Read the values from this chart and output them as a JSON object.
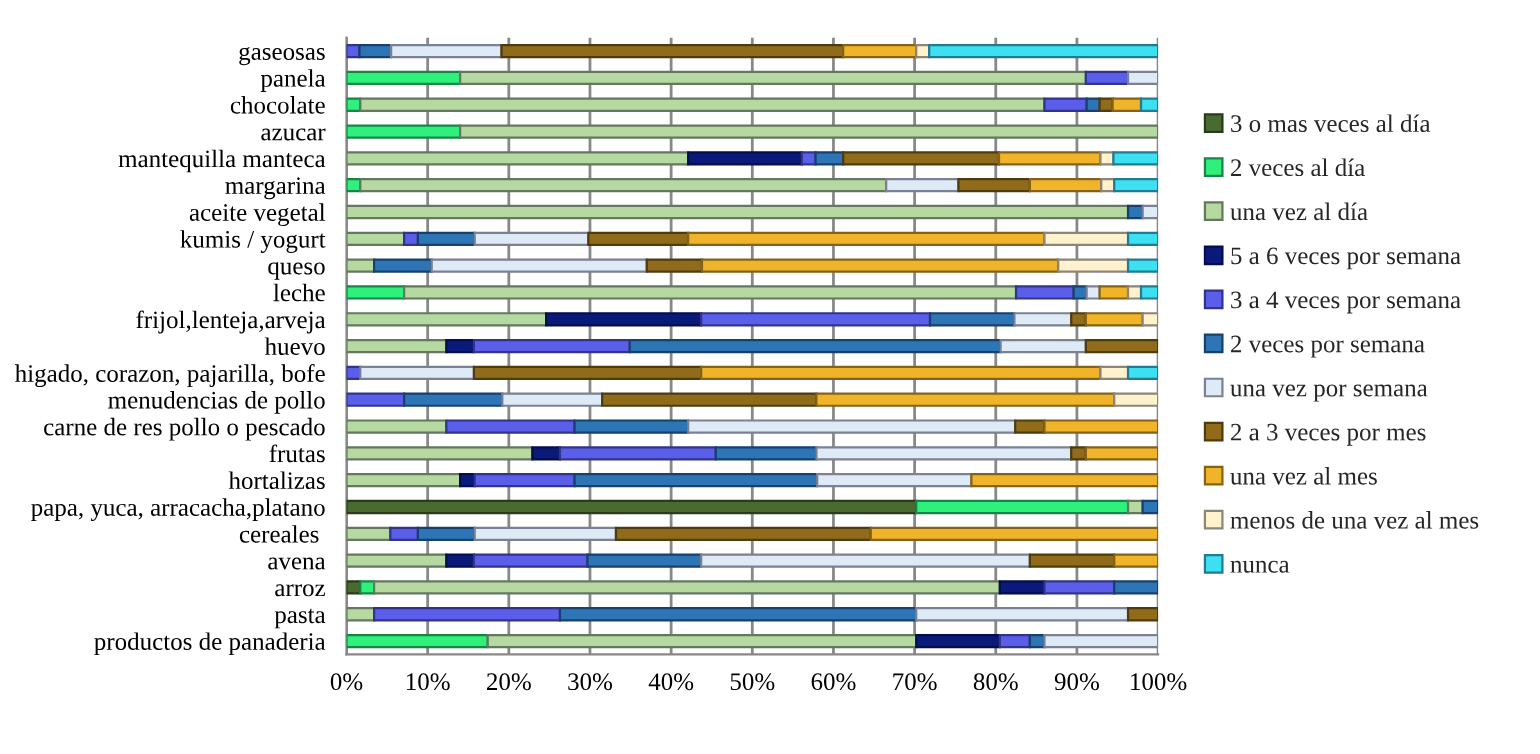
{
  "chart_data": {
    "type": "bar",
    "orientation": "horizontal",
    "stacked": true,
    "categories": [
      "gaseosas",
      "panela",
      "chocolate",
      "azucar",
      "mantequilla manteca",
      "margarina",
      "aceite vegetal",
      "kumis / yogurt",
      "queso",
      "leche",
      "frijol,lenteja,arveja",
      "huevo",
      "higado, corazon, pajarilla, bofe",
      "menudencias de pollo",
      "carne de res pollo o pescado",
      "frutas",
      "hortalizas",
      "papa, yuca, arracacha,platano",
      "cereales ",
      "avena",
      "arroz",
      "pasta",
      "productos de panaderia"
    ],
    "series": [
      {
        "name": "3 o mas veces al día",
        "color": "#4a6b30",
        "values": [
          null,
          null,
          null,
          null,
          null,
          null,
          null,
          null,
          null,
          null,
          null,
          null,
          null,
          null,
          null,
          null,
          null,
          70.2,
          null,
          null,
          1.7,
          null,
          null
        ]
      },
      {
        "name": "2 veces al día",
        "color": "#2ef07a",
        "values": [
          null,
          14.0,
          1.7,
          14.0,
          null,
          1.7,
          null,
          null,
          null,
          7.1,
          null,
          null,
          null,
          null,
          null,
          null,
          null,
          26.1,
          null,
          null,
          1.7,
          null,
          17.4
        ]
      },
      {
        "name": "una vez al día",
        "color": "#b5d9a0",
        "values": [
          null,
          77.1,
          84.3,
          86.0,
          42.1,
          64.8,
          96.3,
          7.1,
          3.4,
          75.4,
          24.6,
          12.3,
          null,
          null,
          12.3,
          22.9,
          14.0,
          1.8,
          5.4,
          12.3,
          77.1,
          3.4,
          52.8
        ]
      },
      {
        "name": "5 a 6 veces por semana",
        "color": "#0a1a7a",
        "values": [
          null,
          null,
          null,
          null,
          14.0,
          null,
          null,
          null,
          null,
          null,
          19.1,
          3.4,
          null,
          null,
          null,
          3.4,
          1.8,
          null,
          null,
          3.4,
          5.5,
          null,
          10.3
        ]
      },
      {
        "name": "3 a 4 veces por semana",
        "color": "#5a5ee8",
        "values": [
          1.6,
          5.2,
          5.2,
          null,
          1.7,
          null,
          null,
          1.7,
          null,
          7.1,
          28.2,
          19.2,
          1.7,
          7.1,
          15.8,
          19.2,
          12.3,
          null,
          3.4,
          14.0,
          8.6,
          22.9,
          3.7
        ]
      },
      {
        "name": "2 veces por semana",
        "color": "#2e75b6",
        "values": [
          3.9,
          null,
          1.6,
          null,
          3.4,
          null,
          1.8,
          7.0,
          7.1,
          1.6,
          10.4,
          45.7,
          null,
          12.1,
          14.0,
          12.4,
          29.9,
          1.9,
          7.0,
          14.0,
          5.4,
          43.9,
          1.8
        ]
      },
      {
        "name": "una vez por semana",
        "color": "#deebf7",
        "values": [
          13.6,
          3.7,
          null,
          null,
          null,
          8.9,
          1.9,
          14.0,
          26.5,
          1.6,
          7.0,
          10.5,
          14.0,
          12.3,
          40.3,
          31.4,
          19.0,
          null,
          17.4,
          40.5,
          null,
          26.1,
          14.0
        ]
      },
      {
        "name": "2 a 3 veces por mes",
        "color": "#8f6b1a",
        "values": [
          42.1,
          null,
          1.6,
          null,
          19.2,
          8.8,
          null,
          12.3,
          6.8,
          null,
          1.8,
          8.9,
          28.0,
          26.4,
          3.6,
          1.8,
          null,
          null,
          31.4,
          10.4,
          null,
          3.7,
          null
        ]
      },
      {
        "name": "una vez al mes",
        "color": "#f0b42a",
        "values": [
          9.0,
          null,
          3.5,
          null,
          12.5,
          8.8,
          null,
          43.9,
          43.9,
          3.5,
          7.0,
          null,
          49.2,
          36.7,
          14.0,
          8.9,
          23.0,
          null,
          35.4,
          5.4,
          null,
          null,
          null
        ]
      },
      {
        "name": "menos de una vez al mes",
        "color": "#fff2cc",
        "values": [
          1.6,
          null,
          null,
          null,
          1.6,
          1.6,
          null,
          10.3,
          8.6,
          1.6,
          1.9,
          null,
          3.4,
          5.4,
          null,
          null,
          null,
          null,
          null,
          null,
          null,
          null,
          null
        ]
      },
      {
        "name": "nunca",
        "color": "#3de0f0",
        "values": [
          28.2,
          null,
          2.1,
          null,
          5.5,
          5.4,
          null,
          3.7,
          3.7,
          2.1,
          null,
          null,
          3.7,
          null,
          null,
          null,
          null,
          null,
          null,
          null,
          null,
          null,
          null
        ]
      }
    ],
    "xlim": [
      0,
      100
    ],
    "xticks": [
      {
        "value": 0,
        "label": "0%"
      },
      {
        "value": 10,
        "label": "10%"
      },
      {
        "value": 20,
        "label": "20%"
      },
      {
        "value": 30,
        "label": "30%"
      },
      {
        "value": 40,
        "label": "40%"
      },
      {
        "value": 50,
        "label": "50%"
      },
      {
        "value": 60,
        "label": "60%"
      },
      {
        "value": 70,
        "label": "70%"
      },
      {
        "value": 80,
        "label": "80%"
      },
      {
        "value": 90,
        "label": "90%"
      },
      {
        "value": 100,
        "label": "100%"
      }
    ],
    "grid": "x",
    "legend": "right"
  }
}
